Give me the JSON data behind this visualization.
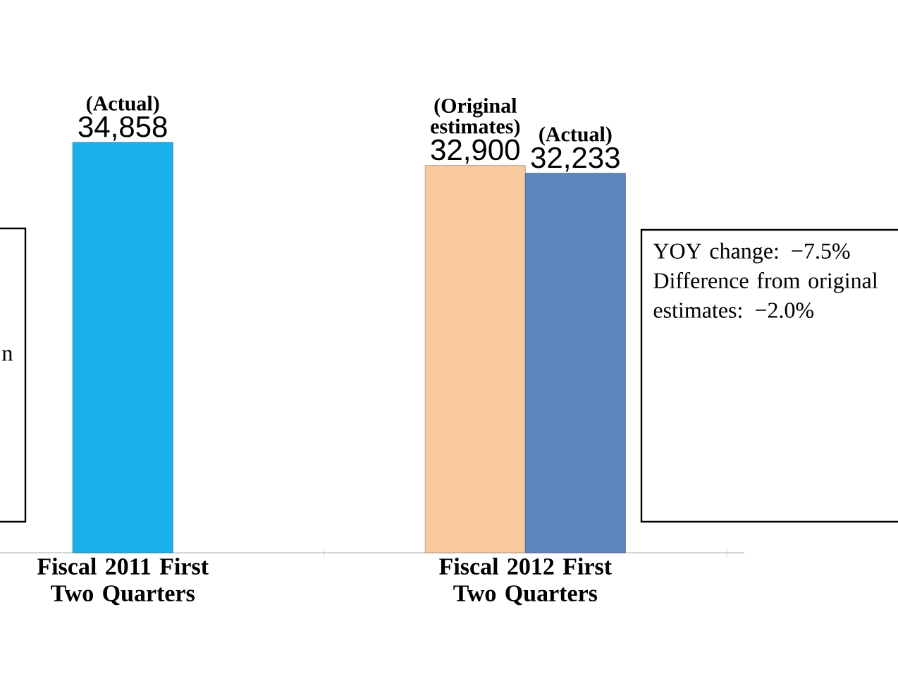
{
  "chart_data": {
    "type": "bar",
    "categories": [
      "Fiscal 2011 First Two Quarters",
      "Fiscal 2012 First Two Quarters"
    ],
    "series": [
      {
        "name": "(Actual)",
        "color": "#1ab0ec",
        "values": [
          34858,
          null
        ],
        "value_labels": [
          "34,858",
          null
        ]
      },
      {
        "name": "(Original estimates)",
        "color": "#f9c9a0",
        "values": [
          null,
          32900
        ],
        "value_labels": [
          null,
          "32,900"
        ]
      },
      {
        "name": "(Actual)",
        "color": "#5b86c0",
        "values": [
          null,
          32233
        ],
        "value_labels": [
          null,
          "32,233"
        ]
      }
    ],
    "annotations": [
      "n",
      "YOY change: −7.5%",
      "Difference from original estimates: −2.0%"
    ]
  }
}
